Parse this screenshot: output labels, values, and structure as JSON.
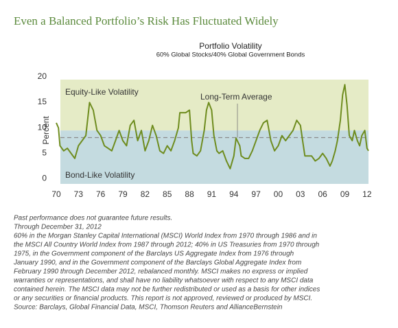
{
  "chart_data": {
    "type": "line",
    "page_title": "Even a Balanced Portfolio’s Risk Has Fluctuated Widely",
    "title": "Portfolio Volatility",
    "subtitle": "60% Global Stocks/40% Global Government Bonds",
    "y_label": "Percent",
    "xlim": [
      1970,
      2012.2
    ],
    "ylim": [
      -0.5,
      20
    ],
    "xticks": [
      {
        "value": 1970,
        "label": "70"
      },
      {
        "value": 1973,
        "label": "73"
      },
      {
        "value": 1976,
        "label": "76"
      },
      {
        "value": 1979,
        "label": "79"
      },
      {
        "value": 1982,
        "label": "82"
      },
      {
        "value": 1985,
        "label": "85"
      },
      {
        "value": 1988,
        "label": "88"
      },
      {
        "value": 1991,
        "label": "91"
      },
      {
        "value": 1994,
        "label": "94"
      },
      {
        "value": 1997,
        "label": "97"
      },
      {
        "value": 2000,
        "label": "00"
      },
      {
        "value": 2003,
        "label": "03"
      },
      {
        "value": 2006,
        "label": "06"
      },
      {
        "value": 2009,
        "label": "09"
      },
      {
        "value": 2012,
        "label": "12"
      }
    ],
    "yticks": [
      0,
      5,
      10,
      15,
      20
    ],
    "bands": [
      {
        "label": "Equity-Like Volatility",
        "from": 10,
        "to": 20,
        "color": "#e5ebc6"
      },
      {
        "label": "Bond-Like Volatility",
        "from": -0.5,
        "to": 10,
        "color": "#c4dbe0"
      }
    ],
    "average": {
      "label": "Long-Term Average",
      "value": 8.6,
      "color": "#8a8a8a"
    },
    "series": [
      {
        "name": "Portfolio Volatility",
        "color": "#6e8c1e",
        "x": [
          1970,
          1970.3,
          1970.5,
          1971,
          1971.5,
          1972,
          1972.5,
          1973,
          1973.5,
          1974,
          1974.5,
          1975,
          1975.5,
          1976,
          1976.5,
          1977,
          1977.5,
          1978,
          1978.5,
          1979,
          1979.5,
          1980,
          1980.5,
          1981,
          1981.5,
          1982,
          1982.5,
          1983,
          1983.5,
          1984,
          1984.5,
          1985,
          1985.5,
          1986,
          1986.5,
          1986.7,
          1987.5,
          1988,
          1988.3,
          1988.5,
          1989,
          1989.5,
          1990,
          1990.3,
          1990.6,
          1991,
          1991.3,
          1991.7,
          1992,
          1992.5,
          1993,
          1993.5,
          1994,
          1994.3,
          1994.8,
          1995,
          1995.5,
          1996,
          1996.5,
          1997,
          1997.5,
          1998,
          1998.5,
          1999,
          1999.5,
          2000,
          2000.5,
          2001,
          2001.5,
          2002,
          2002.5,
          2003,
          2003.3,
          2003.6,
          2004,
          2004.5,
          2005,
          2005.5,
          2006,
          2006.5,
          2007,
          2007.3,
          2007.7,
          2008,
          2008.4,
          2008.7,
          2009,
          2009.3,
          2009.6,
          2010,
          2010.3,
          2010.7,
          2011,
          2011.3,
          2011.7,
          2012,
          2012.2
        ],
        "values": [
          11.5,
          10.5,
          7,
          6,
          6.5,
          5.5,
          4.5,
          7,
          8,
          9,
          15.5,
          14,
          10,
          9,
          7,
          6.5,
          6,
          8,
          10,
          8,
          7,
          11,
          12,
          8,
          10,
          6,
          8,
          11,
          9,
          6,
          5.5,
          7,
          6,
          8,
          10.5,
          13.5,
          13.5,
          14,
          8,
          5.5,
          5,
          6,
          10,
          14,
          15.5,
          14,
          9,
          6,
          5.5,
          6,
          4,
          2.5,
          5,
          8.5,
          7,
          5,
          4.5,
          4.5,
          6,
          8,
          10,
          11.5,
          12,
          8,
          6,
          7,
          9,
          8,
          9,
          10,
          12,
          11,
          8,
          5,
          5,
          5,
          4,
          4.5,
          5.5,
          4.5,
          3,
          4,
          6,
          8,
          12,
          17,
          19,
          15,
          9,
          8,
          10,
          8,
          7,
          9,
          10,
          6.5,
          6
        ]
      }
    ],
    "notes": [
      "Past performance does not guarantee future results.",
      "Through December 31, 2012",
      "60% in the Morgan Stanley Capital International (MSCI) World Index from 1970 through 1986 and in",
      "the MSCI All Country World Index from 1987 through 2012; 40% in US Treasuries from 1970 through",
      "1975, in the Government component of the Barclays US Aggregate Index from 1976 through",
      "January 1990, and in the Government component of the Barclays Global Aggregate Index from",
      "February 1990 through December 2012, rebalanced monthly. MSCI makes no express or implied",
      "warranties or representations, and shall have no liability whatsoever with respect to any MSCI data",
      "contained herein. The MSCI data may not be further redistributed or used as a basis for other indices",
      "or any securities or financial products. This report is not approved, reviewed or produced by MSCI.",
      "Source: Barclays, Global Financial Data, MSCI, Thomson Reuters and AllianceBernstein"
    ]
  }
}
